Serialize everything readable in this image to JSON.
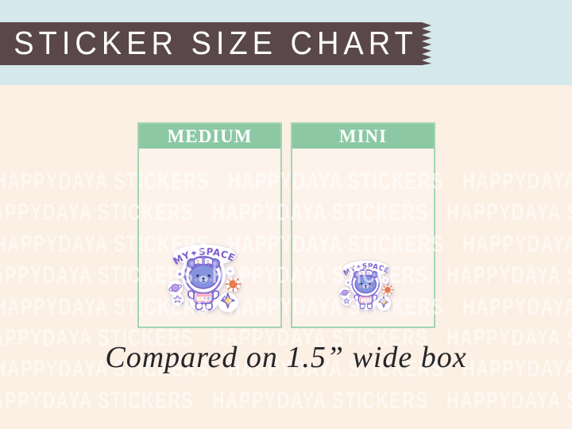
{
  "banner": {
    "title": "STICKER SIZE CHART"
  },
  "size_chart": {
    "columns": [
      {
        "label": "MEDIUM"
      },
      {
        "label": "MINI"
      }
    ]
  },
  "sticker": {
    "arc_text": "MY✦SPACE"
  },
  "caption": {
    "text": "Compared on 1.5” wide box"
  },
  "watermark": {
    "text": "HAPPYDAYA STICKERS",
    "rows": 8,
    "repeats_per_row": 4
  },
  "colors": {
    "banner_bg": "#5a4749",
    "strip_bg": "#d5e8eb",
    "page_bg": "#fcefe3",
    "box_header_bg": "#8cc8a4",
    "box_border": "#a3d4b3",
    "box_body_bg": "#fdf3eb",
    "watermark_color": "rgba(255,255,255,0.55)",
    "caption_color": "#26262a",
    "banner_text": "#ffffff",
    "box_header_text": "#ffffff",
    "sticker_outline": "#7a66cc",
    "sticker_fur": "#8494de",
    "sticker_text": "#7c5fc9",
    "sticker_star": "#f6d87c",
    "sticker_sun": "#ef8a54",
    "sticker_planet": "#c9a3e8"
  }
}
